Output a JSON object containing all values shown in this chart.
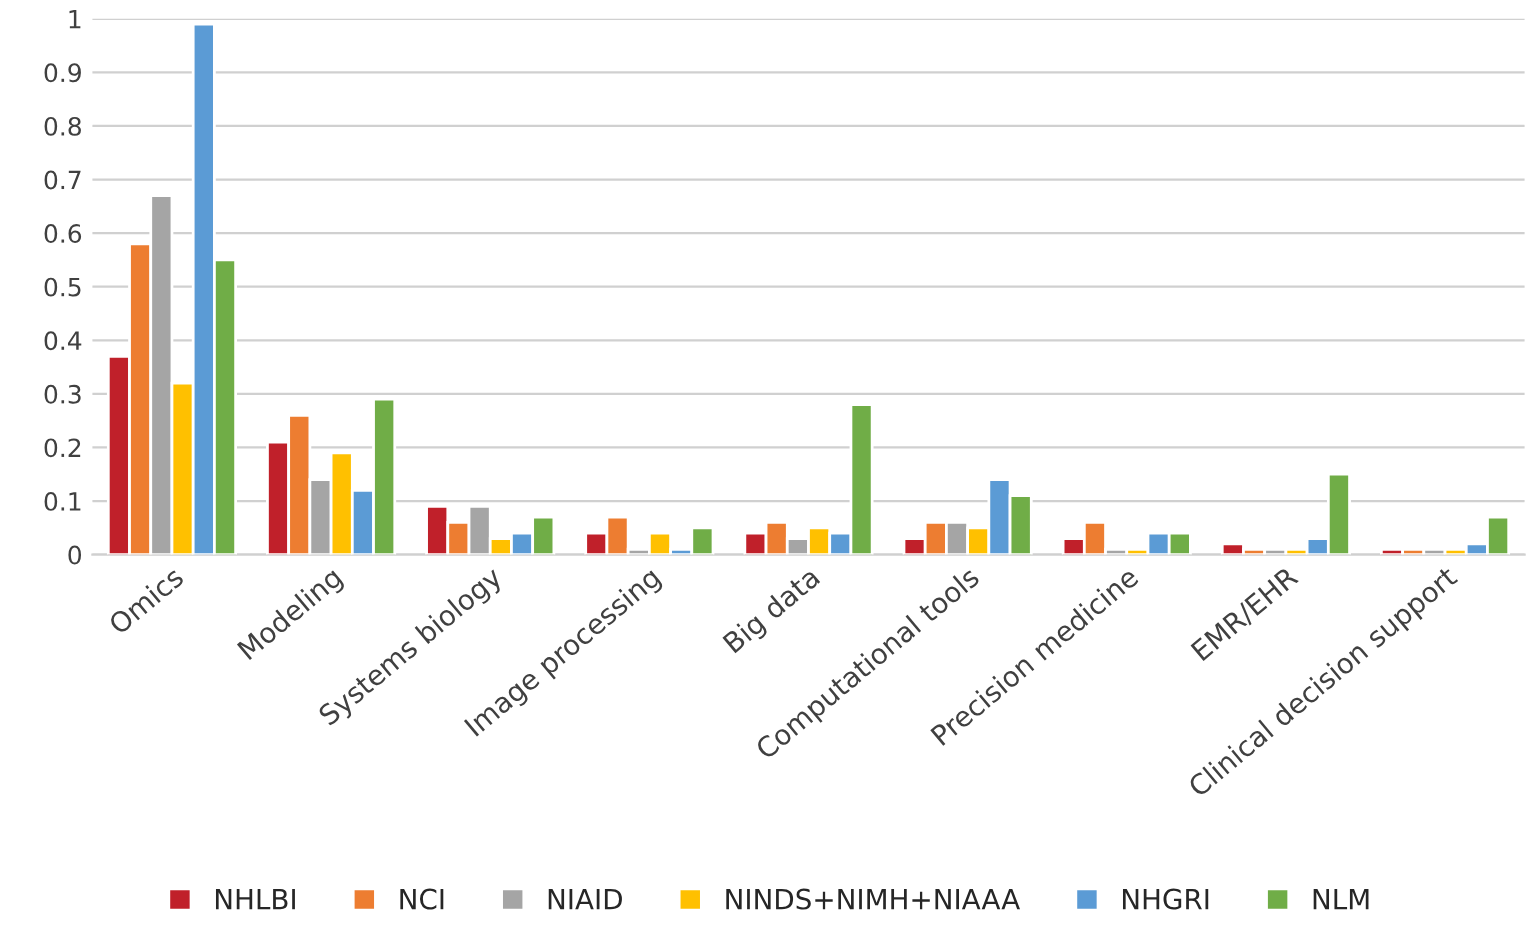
{
  "chart_data": {
    "type": "bar",
    "categories": [
      "Omics",
      "Modeling",
      "Systems biology",
      "Image processing",
      "Big data",
      "Computational tools",
      "Precision medicine",
      "EMR/EHR",
      "Clinical decision support"
    ],
    "series": [
      {
        "name": "NHLBI",
        "color": "#c0202a",
        "values": [
          0.37,
          0.21,
          0.09,
          0.04,
          0.04,
          0.03,
          0.03,
          0.02,
          0.01
        ]
      },
      {
        "name": "NCI",
        "color": "#ed7d31",
        "values": [
          0.58,
          0.26,
          0.06,
          0.07,
          0.06,
          0.06,
          0.06,
          0.01,
          0.01
        ]
      },
      {
        "name": "NIAID",
        "color": "#a5a5a5",
        "values": [
          0.67,
          0.14,
          0.09,
          0.01,
          0.03,
          0.06,
          0.01,
          0.01,
          0.01
        ]
      },
      {
        "name": "NINDS+NIMH+NIAAA",
        "color": "#ffc000",
        "values": [
          0.32,
          0.19,
          0.03,
          0.04,
          0.05,
          0.05,
          0.01,
          0.01,
          0.01
        ]
      },
      {
        "name": "NHGRI",
        "color": "#5b9bd5",
        "values": [
          0.99,
          0.12,
          0.04,
          0.01,
          0.04,
          0.14,
          0.04,
          0.03,
          0.02
        ]
      },
      {
        "name": "NLM",
        "color": "#70ad47",
        "values": [
          0.55,
          0.29,
          0.07,
          0.05,
          0.28,
          0.11,
          0.04,
          0.15,
          0.07
        ]
      }
    ],
    "ylim": [
      0,
      1
    ],
    "yticks": [
      0,
      0.1,
      0.2,
      0.3,
      0.4,
      0.5,
      0.6,
      0.7,
      0.8,
      0.9,
      1
    ],
    "grid": "y",
    "legend": "bottom"
  }
}
